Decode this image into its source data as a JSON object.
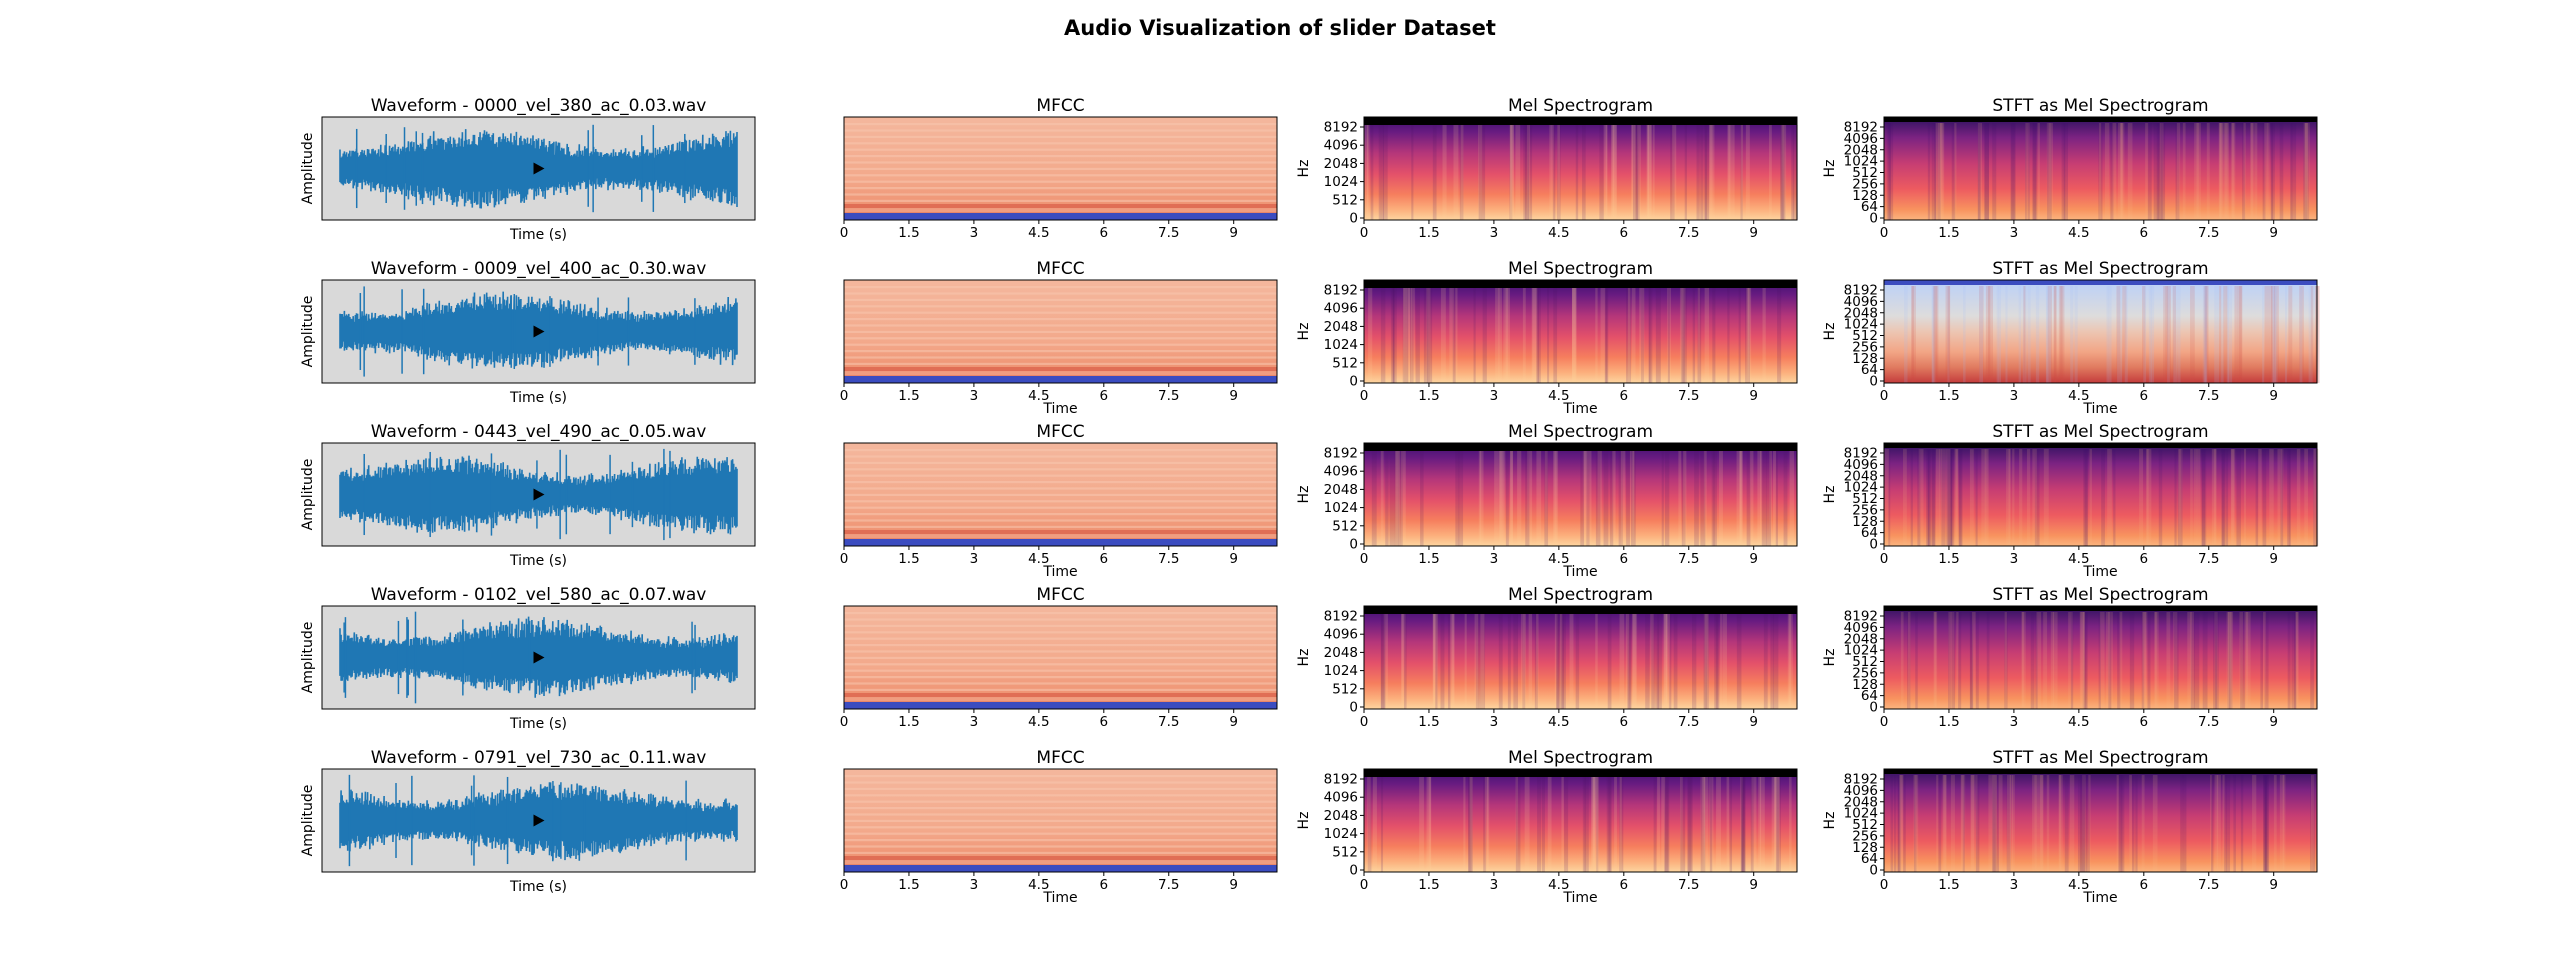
{
  "figure_title": "Audio Visualization of slider Dataset",
  "column_titles": {
    "mfcc": "MFCC",
    "mel": "Mel Spectrogram",
    "stft": "STFT as Mel Spectrogram"
  },
  "labels": {
    "amplitude": "Amplitude",
    "time_s": "Time (s)",
    "time": "Time",
    "hz": "Hz"
  },
  "time_ticks": [
    "0",
    "1.5",
    "3",
    "4.5",
    "6",
    "7.5",
    "9"
  ],
  "mel_ticks": [
    "0",
    "512",
    "1024",
    "2048",
    "4096",
    "8192"
  ],
  "stft_ticks": [
    "0",
    "64",
    "128",
    "256",
    "512",
    "1024",
    "2048",
    "4096",
    "8192"
  ],
  "play_icon": "play-icon",
  "colors": {
    "waveform": "#1f77b4",
    "player_bg": "#d9d9d9",
    "mfcc_cmap": "coolwarm",
    "mel_cmap": "magma"
  },
  "rows": [
    {
      "waveform_title": "Waveform - 0000_vel_380_ac_0.03.wav",
      "seed": 11,
      "stft_style": "magma",
      "show_mfcc_time": false,
      "show_mel_time": false,
      "show_stft_time": false
    },
    {
      "waveform_title": "Waveform - 0009_vel_400_ac_0.30.wav",
      "seed": 23,
      "stft_style": "coolwarm",
      "show_mfcc_time": true,
      "show_mel_time": true,
      "show_stft_time": true
    },
    {
      "waveform_title": "Waveform - 0443_vel_490_ac_0.05.wav",
      "seed": 37,
      "stft_style": "magma",
      "show_mfcc_time": true,
      "show_mel_time": true,
      "show_stft_time": true
    },
    {
      "waveform_title": "Waveform - 0102_vel_580_ac_0.07.wav",
      "seed": 41,
      "stft_style": "magma",
      "show_mfcc_time": false,
      "show_mel_time": false,
      "show_stft_time": false
    },
    {
      "waveform_title": "Waveform - 0791_vel_730_ac_0.11.wav",
      "seed": 53,
      "stft_style": "magma",
      "show_mfcc_time": true,
      "show_mel_time": true,
      "show_stft_time": true
    }
  ],
  "chart_data": [
    {
      "type": "line",
      "panel": "waveform",
      "xlabel": "Time (s)",
      "ylabel": "Amplitude",
      "count": 5
    },
    {
      "type": "heatmap",
      "panel": "mfcc",
      "title": "MFCC",
      "xlabel": "Time",
      "x_ticks": [
        0,
        1.5,
        3,
        4.5,
        6,
        7.5,
        9
      ],
      "xlim": [
        0,
        10
      ],
      "count": 5
    },
    {
      "type": "heatmap",
      "panel": "mel",
      "title": "Mel Spectrogram",
      "xlabel": "Time",
      "ylabel": "Hz",
      "y_ticks": [
        0,
        512,
        1024,
        2048,
        4096,
        8192
      ],
      "x_ticks": [
        0,
        1.5,
        3,
        4.5,
        6,
        7.5,
        9
      ],
      "xlim": [
        0,
        10
      ],
      "count": 5
    },
    {
      "type": "heatmap",
      "panel": "stft",
      "title": "STFT as Mel Spectrogram",
      "xlabel": "Time",
      "ylabel": "Hz",
      "y_ticks": [
        0,
        64,
        128,
        256,
        512,
        1024,
        2048,
        4096,
        8192
      ],
      "x_ticks": [
        0,
        1.5,
        3,
        4.5,
        6,
        7.5,
        9
      ],
      "xlim": [
        0,
        10
      ],
      "count": 5
    }
  ]
}
